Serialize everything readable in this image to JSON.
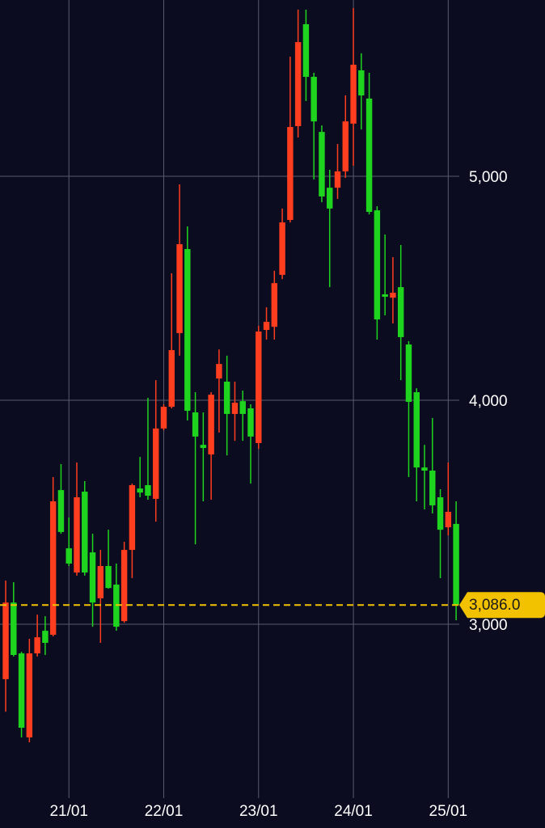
{
  "chart_data": {
    "type": "candlestick",
    "up_color": "#ff3d1f",
    "down_color": "#1fd41f",
    "background": "#0b0c1f",
    "grid": true,
    "open": [
      2755,
      3097,
      2870,
      2495,
      2870,
      2971,
      2953,
      3599,
      3339,
      3231,
      3592,
      3321,
      3116,
      3260,
      3177,
      3014,
      3332,
      3606,
      3621,
      3560,
      3874,
      3971,
      4300,
      4675,
      3946,
      3801,
      3758,
      4097,
      4083,
      3939,
      3996,
      3964,
      3809,
      4314,
      4328,
      4560,
      4805,
      5224,
      5679,
      5444,
      5198,
      4949,
      4949,
      5022,
      5235,
      5473,
      5347,
      4848,
      4473,
      4458,
      4505,
      4249,
      4036,
      3700,
      3686,
      3567,
      3433,
      3448
    ],
    "high": [
      3195,
      3188,
      2877,
      2935,
      3043,
      3036,
      3657,
      3715,
      3477,
      3722,
      3639,
      3404,
      3332,
      3422,
      3271,
      3368,
      3628,
      3747,
      4011,
      4090,
      3982,
      4567,
      4964,
      4776,
      4036,
      3946,
      4036,
      4227,
      4199,
      4083,
      4043,
      3982,
      4332,
      4415,
      4578,
      4856,
      5534,
      5744,
      5744,
      5462,
      5227,
      5029,
      5144,
      5361,
      5751,
      5549,
      5462,
      4866,
      4740,
      4639,
      4693,
      4264,
      4054,
      3801,
      3921,
      3603,
      3722,
      3549
    ],
    "low": [
      2610,
      2856,
      2495,
      2473,
      2856,
      2863,
      2946,
      3404,
      3260,
      3217,
      3217,
      2989,
      2917,
      3159,
      2971,
      3007,
      3206,
      3567,
      3556,
      3458,
      3866,
      3964,
      4199,
      3910,
      3357,
      3549,
      3556,
      3856,
      3754,
      3819,
      3819,
      3628,
      3783,
      4271,
      4271,
      4541,
      4794,
      5173,
      5336,
      4986,
      4884,
      4505,
      4899,
      4993,
      5047,
      5209,
      4830,
      4271,
      4379,
      4343,
      4090,
      3657,
      3549,
      3513,
      3495,
      3206,
      3397,
      3018
    ],
    "close": [
      3097,
      2863,
      2538,
      2870,
      2942,
      2917,
      3549,
      3412,
      3271,
      3567,
      3231,
      3097,
      3260,
      3162,
      2989,
      3332,
      3621,
      3588,
      3574,
      3874,
      3971,
      4224,
      4697,
      3953,
      3838,
      3787,
      4025,
      4162,
      3939,
      3989,
      3939,
      3838,
      4307,
      4350,
      4523,
      4794,
      5220,
      5599,
      5444,
      5245,
      4910,
      4856,
      5022,
      5245,
      5498,
      5361,
      4841,
      4361,
      4462,
      4480,
      4282,
      3993,
      3700,
      3686,
      3531,
      3422,
      3502,
      3086
    ],
    "xlim": [
      -0.72,
      57.4
    ],
    "xticks": [
      {
        "value": 8,
        "label": "21/01"
      },
      {
        "value": 20,
        "label": "22/01"
      },
      {
        "value": 32,
        "label": "23/01"
      },
      {
        "value": 44,
        "label": "24/01"
      },
      {
        "value": 56,
        "label": "25/01"
      }
    ],
    "ylim": [
      2224,
      5787
    ],
    "yticks": [
      {
        "value": 3000,
        "label": "3,000"
      },
      {
        "value": 4000,
        "label": "4,000"
      },
      {
        "value": 5000,
        "label": "5,000"
      }
    ],
    "last_price": {
      "value": 3086,
      "label": "3,086.0"
    },
    "last_price_color": "#f2c200"
  }
}
